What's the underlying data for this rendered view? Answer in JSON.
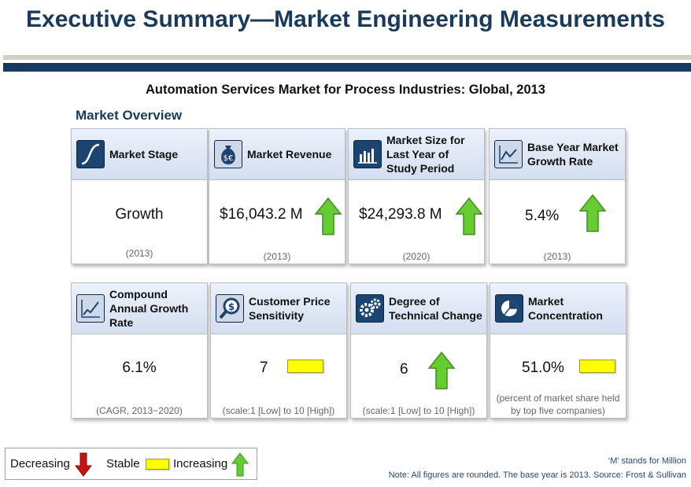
{
  "page": {
    "title": "Executive Summary—Market Engineering Measurements",
    "subtitle": "Automation Services Market for Process Industries: Global, 2013",
    "section_heading": "Market Overview"
  },
  "cards": [
    {
      "label": "Market Stage",
      "value": "Growth",
      "note": "(2013)",
      "trend": "none",
      "icon": "s-curve-icon"
    },
    {
      "label": "Market Revenue",
      "value": "$16,043.2 M",
      "note": "(2013)",
      "trend": "increasing",
      "icon": "money-bag-icon"
    },
    {
      "label": "Market Size for Last Year of Study Period",
      "value": "$24,293.8 M",
      "note": "(2020)",
      "trend": "increasing",
      "icon": "bar-chart-icon"
    },
    {
      "label": "Base Year Market Growth Rate",
      "value": "5.4%",
      "note": "(2013)",
      "trend": "increasing",
      "icon": "line-chart-icon"
    },
    {
      "label": "Compound Annual Growth Rate",
      "value": "6.1%",
      "note": "(CAGR, 2013−2020)",
      "trend": "none",
      "icon": "line-chart-icon"
    },
    {
      "label": "Customer Price Sensitivity",
      "value": "7",
      "note": "(scale:1 [Low] to 10 [High])",
      "trend": "stable",
      "icon": "price-search-icon"
    },
    {
      "label": "Degree of Technical Change",
      "value": "6",
      "note": "(scale:1 [Low] to 10 [High])",
      "trend": "increasing",
      "icon": "gears-icon"
    },
    {
      "label": "Market Concentration",
      "value": "51.0%",
      "note": "(percent of market share held by top five companies)",
      "trend": "stable",
      "icon": "pie-chart-icon"
    }
  ],
  "legend": {
    "decreasing": "Decreasing",
    "stable": "Stable",
    "increasing": "Increasing"
  },
  "footnotes": {
    "million": "‘M’ stands for Million",
    "source": "Note: All figures are rounded. The base year is 2013. Source: Frost & Sullivan"
  },
  "colors": {
    "title": "#1a3a5c",
    "rule": "#163a5f",
    "increasing": "#66cc33",
    "decreasing": "#cc1111",
    "stable": "#ffff00"
  }
}
